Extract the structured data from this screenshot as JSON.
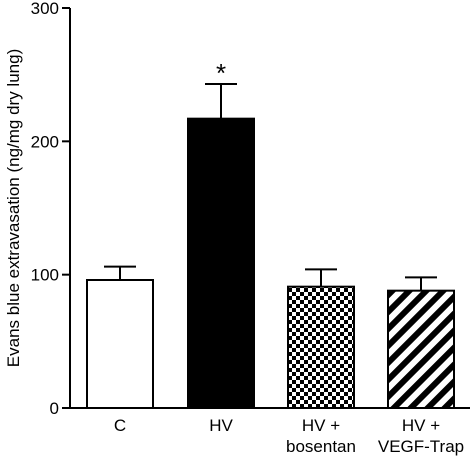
{
  "chart_data": {
    "type": "bar",
    "ylabel": "Evans blue extravasation (ng/mg dry lung)",
    "ylim": [
      0,
      300
    ],
    "yticks": [
      0,
      100,
      200,
      300
    ],
    "categories": [
      {
        "lines": [
          "C"
        ]
      },
      {
        "lines": [
          "HV"
        ]
      },
      {
        "lines": [
          "HV +",
          "bosentan"
        ]
      },
      {
        "lines": [
          "HV +",
          "VEGF-Trap"
        ]
      }
    ],
    "values": [
      96,
      217,
      91,
      88
    ],
    "errors": [
      10,
      26,
      13,
      10
    ],
    "fills": [
      "white",
      "black",
      "checker",
      "diagonal"
    ],
    "annotations": [
      {
        "category_index": 1,
        "text": "*"
      }
    ],
    "grid": false,
    "legend": "none"
  }
}
